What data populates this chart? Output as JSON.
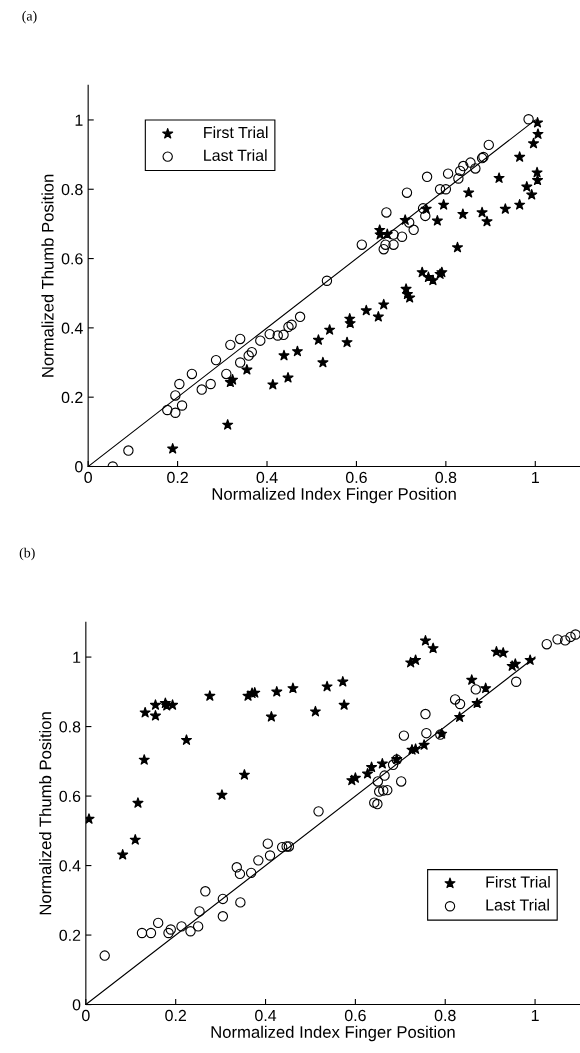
{
  "chart_data": [
    {
      "type": "scatter",
      "title": "(a)",
      "xlabel": "Normalized Index Finger Position",
      "ylabel": "Normalized Thumb Position",
      "xlim": [
        0,
        1.1
      ],
      "ylim": [
        0,
        1.1
      ],
      "xticks": [
        0,
        0.2,
        0.4,
        0.6,
        0.8,
        1
      ],
      "yticks": [
        0,
        0.2,
        0.4,
        0.6,
        0.8,
        1
      ],
      "legend": "top left",
      "grid": false,
      "series": [
        {
          "name": "First Trial",
          "color": "#000000",
          "marker": "star",
          "x": [
            0.189,
            0.312,
            0.318,
            0.323,
            0.355,
            0.413,
            0.438,
            0.447,
            0.468,
            0.515,
            0.525,
            0.54,
            0.579,
            0.585,
            0.586,
            0.622,
            0.649,
            0.661,
            0.711,
            0.714,
            0.719,
            0.747,
            0.761,
            0.771,
            0.787,
            0.791,
            0.826,
            0.652,
            0.653,
            0.669,
            0.709,
            0.756,
            0.781,
            0.795,
            0.838,
            0.851,
            0.881,
            0.892,
            0.919,
            0.933,
            0.965,
            0.965,
            0.981,
            0.992,
            0.996,
            1.004,
            1.005,
            1.005,
            1.006
          ],
          "values": [
            0.051,
            0.12,
            0.243,
            0.25,
            0.279,
            0.236,
            0.32,
            0.256,
            0.332,
            0.365,
            0.3,
            0.394,
            0.358,
            0.426,
            0.413,
            0.45,
            0.432,
            0.467,
            0.512,
            0.497,
            0.487,
            0.56,
            0.546,
            0.537,
            0.555,
            0.56,
            0.632,
            0.682,
            0.669,
            0.67,
            0.711,
            0.743,
            0.709,
            0.755,
            0.728,
            0.79,
            0.733,
            0.707,
            0.832,
            0.743,
            0.893,
            0.755,
            0.807,
            0.784,
            0.932,
            0.848,
            0.826,
            0.992,
            0.959
          ]
        },
        {
          "name": "Last Trial",
          "color": "#000000",
          "marker": "circle",
          "x": [
            0.055,
            0.09,
            0.177,
            0.195,
            0.195,
            0.21,
            0.204,
            0.232,
            0.254,
            0.274,
            0.286,
            0.309,
            0.318,
            0.34,
            0.34,
            0.359,
            0.366,
            0.385,
            0.406,
            0.424,
            0.437,
            0.448,
            0.455,
            0.474,
            0.534,
            0.612,
            0.661,
            0.665,
            0.667,
            0.683,
            0.683,
            0.702,
            0.713,
            0.718,
            0.728,
            0.749,
            0.754,
            0.758,
            0.787,
            0.8,
            0.805,
            0.828,
            0.832,
            0.839,
            0.855,
            0.866,
            0.881,
            0.884,
            0.896,
            0.985
          ],
          "values": [
            0.0,
            0.046,
            0.163,
            0.205,
            0.155,
            0.176,
            0.238,
            0.267,
            0.222,
            0.238,
            0.307,
            0.267,
            0.351,
            0.368,
            0.3,
            0.32,
            0.33,
            0.363,
            0.382,
            0.378,
            0.38,
            0.403,
            0.409,
            0.432,
            0.536,
            0.64,
            0.627,
            0.64,
            0.733,
            0.669,
            0.64,
            0.663,
            0.79,
            0.704,
            0.683,
            0.745,
            0.723,
            0.836,
            0.8,
            0.8,
            0.845,
            0.831,
            0.853,
            0.867,
            0.877,
            0.86,
            0.89,
            0.893,
            0.928,
            1.002
          ]
        },
        {
          "type": "line",
          "color": "#000000",
          "marker": "none",
          "x": [
            0,
            1
          ],
          "values": [
            0,
            1
          ]
        }
      ]
    },
    {
      "type": "scatter",
      "title": "(b)",
      "xlabel": "Normalized Index Finger Position",
      "ylabel": "Normalized Thumb Position",
      "xlim": [
        0,
        1.1
      ],
      "ylim": [
        0,
        1.1
      ],
      "xticks": [
        0,
        0.2,
        0.4,
        0.6,
        0.8,
        1
      ],
      "yticks": [
        0,
        0.2,
        0.4,
        0.6,
        0.8,
        1
      ],
      "legend": "bottom right",
      "grid": false,
      "series": [
        {
          "name": "First Trial",
          "color": "#000000",
          "marker": "star",
          "x": [
            0.007,
            0.082,
            0.11,
            0.116,
            0.13,
            0.132,
            0.155,
            0.155,
            0.177,
            0.18,
            0.193,
            0.224,
            0.276,
            0.303,
            0.353,
            0.361,
            0.37,
            0.376,
            0.413,
            0.425,
            0.461,
            0.511,
            0.537,
            0.572,
            0.575,
            0.592,
            0.6,
            0.627,
            0.636,
            0.66,
            0.692,
            0.726,
            0.734,
            0.753,
            0.723,
            0.734,
            0.756,
            0.773,
            0.792,
            0.832,
            0.859,
            0.871,
            0.89,
            0.914,
            0.929,
            0.949,
            0.956,
            0.989
          ],
          "values": [
            0.534,
            0.431,
            0.474,
            0.58,
            0.704,
            0.84,
            0.862,
            0.831,
            0.867,
            0.86,
            0.862,
            0.761,
            0.888,
            0.603,
            0.661,
            0.888,
            0.896,
            0.897,
            0.828,
            0.9,
            0.91,
            0.843,
            0.915,
            0.929,
            0.862,
            0.645,
            0.652,
            0.664,
            0.683,
            0.693,
            0.706,
            0.733,
            0.735,
            0.747,
            0.984,
            0.991,
            1.047,
            1.025,
            0.779,
            0.827,
            0.934,
            0.867,
            0.91,
            1.015,
            1.012,
            0.974,
            0.98,
            0.991
          ]
        },
        {
          "name": "Last Trial",
          "color": "#000000",
          "marker": "circle",
          "x": [
            0.042,
            0.125,
            0.145,
            0.161,
            0.184,
            0.189,
            0.213,
            0.233,
            0.25,
            0.253,
            0.266,
            0.305,
            0.305,
            0.336,
            0.343,
            0.344,
            0.368,
            0.384,
            0.405,
            0.41,
            0.437,
            0.447,
            0.452,
            0.518,
            0.642,
            0.649,
            0.653,
            0.662,
            0.671,
            0.65,
            0.665,
            0.684,
            0.692,
            0.702,
            0.708,
            0.756,
            0.758,
            0.789,
            0.822,
            0.833,
            0.868,
            0.958,
            1.026,
            1.05,
            1.067,
            1.079,
            1.09
          ],
          "values": [
            0.141,
            0.206,
            0.206,
            0.235,
            0.206,
            0.216,
            0.225,
            0.211,
            0.225,
            0.268,
            0.326,
            0.254,
            0.304,
            0.395,
            0.376,
            0.294,
            0.379,
            0.415,
            0.463,
            0.429,
            0.453,
            0.455,
            0.455,
            0.556,
            0.581,
            0.577,
            0.613,
            0.616,
            0.617,
            0.642,
            0.659,
            0.69,
            0.705,
            0.642,
            0.774,
            0.836,
            0.781,
            0.777,
            0.878,
            0.865,
            0.907,
            0.929,
            1.037,
            1.051,
            1.048,
            1.058,
            1.065
          ]
        },
        {
          "type": "line",
          "color": "#000000",
          "marker": "none",
          "x": [
            0,
            1
          ],
          "values": [
            0,
            1
          ]
        }
      ]
    }
  ]
}
